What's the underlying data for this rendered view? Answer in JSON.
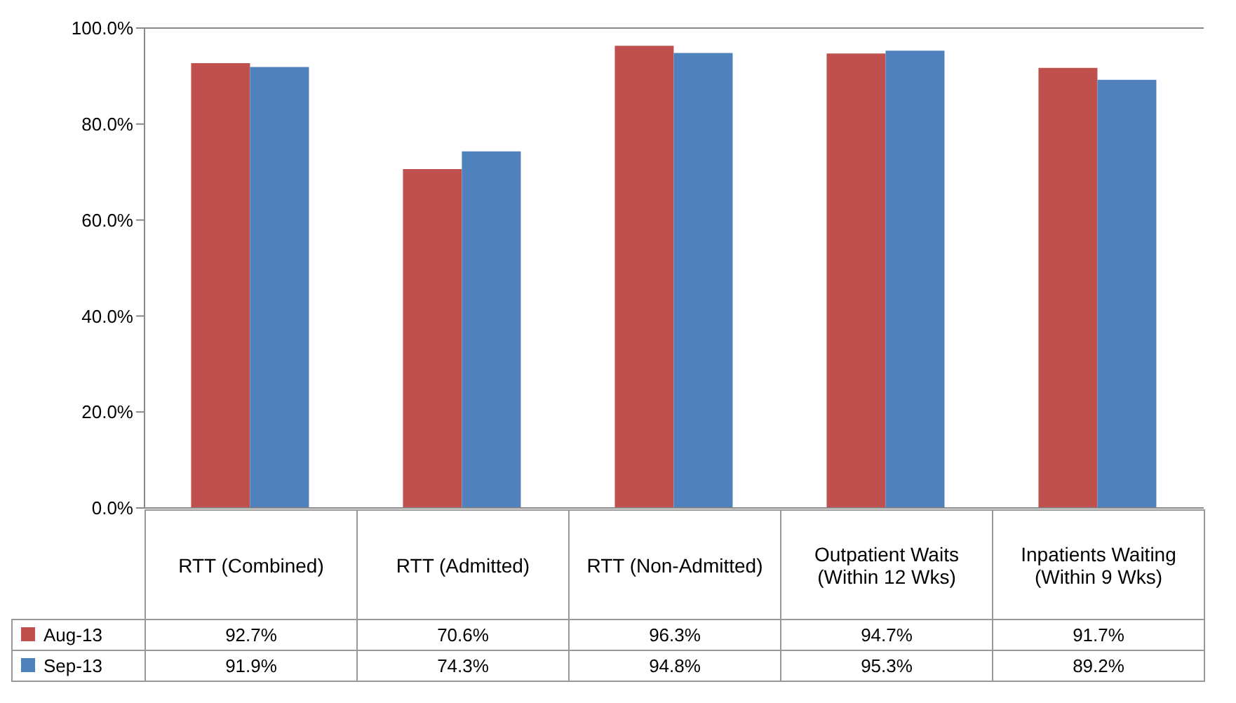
{
  "chart_data": {
    "type": "bar",
    "categories": [
      "RTT (Combined)",
      "RTT (Admitted)",
      "RTT (Non-Admitted)",
      "Outpatient Waits (Within 12 Wks)",
      "Inpatients Waiting (Within 9 Wks)"
    ],
    "series": [
      {
        "name": "Aug-13",
        "color": "#c0504d",
        "values": [
          92.7,
          70.6,
          96.3,
          94.7,
          91.7
        ],
        "value_labels": [
          "92.7%",
          "70.6%",
          "96.3%",
          "94.7%",
          "91.7%"
        ]
      },
      {
        "name": "Sep-13",
        "color": "#4f81bd",
        "values": [
          91.9,
          74.3,
          94.8,
          95.3,
          89.2
        ],
        "value_labels": [
          "91.9%",
          "74.3%",
          "94.8%",
          "95.3%",
          "89.2%"
        ]
      }
    ],
    "ylim": [
      0,
      100
    ],
    "yticks": [
      {
        "value": 0,
        "label": "0.0%"
      },
      {
        "value": 20,
        "label": "20.0%"
      },
      {
        "value": 40,
        "label": "40.0%"
      },
      {
        "value": 60,
        "label": "60.0%"
      },
      {
        "value": 80,
        "label": "80.0%"
      },
      {
        "value": 100,
        "label": "100.0%"
      }
    ],
    "grid": false,
    "legend": "bottom"
  }
}
